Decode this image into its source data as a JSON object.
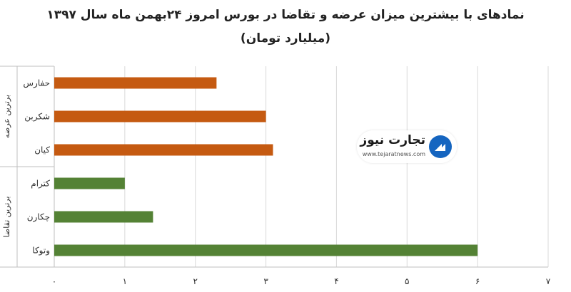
{
  "chart_data": {
    "type": "bar",
    "orientation": "horizontal",
    "title_line1": "نمادهای با بیشترین میزان عرضه و تقاضا در بورس امروز ۲۴بهمن ماه سال ۱۳۹۷",
    "title_line2": "(میلیارد تومان)",
    "categories": [
      "حفارس",
      "شکربن",
      "کیان",
      "کترام",
      "چکارن",
      "وتوکا"
    ],
    "values": [
      2.3,
      3.0,
      3.1,
      1.0,
      1.4,
      6.0
    ],
    "groups": [
      {
        "label": "برترین عرضه",
        "categories": [
          "حفارس",
          "شکربن",
          "کیان"
        ],
        "color": "#C55A11"
      },
      {
        "label": "برترین تقاضا",
        "categories": [
          "کترام",
          "چکارن",
          "وتوکا"
        ],
        "color": "#548235"
      }
    ],
    "x_ticks": [
      "۰",
      "۱",
      "۲",
      "۳",
      "۴",
      "۵",
      "۶",
      "۷"
    ],
    "xlim": [
      0,
      7
    ],
    "grid": true,
    "legend": "none"
  },
  "watermark": {
    "name": "تجارت نیوز",
    "url": "www.tejaratnews.com",
    "icon": "tejaratnews-logo-icon",
    "color": "#1565C0"
  }
}
